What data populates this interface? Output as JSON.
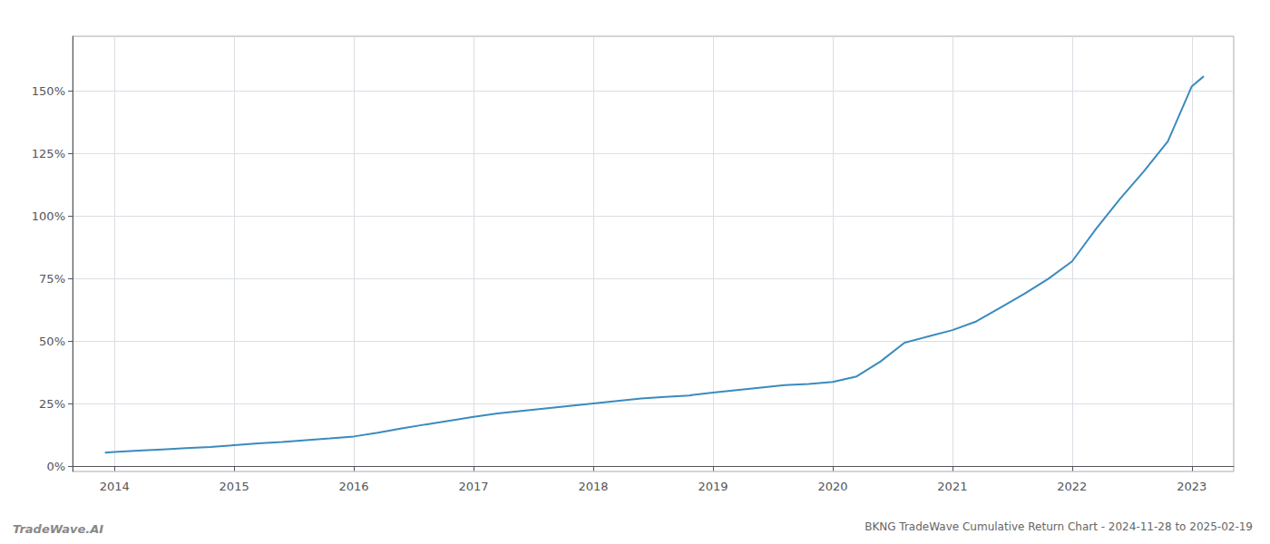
{
  "chart_data": {
    "type": "line",
    "title": "BKNG TradeWave Cumulative Return Chart - 2024-11-28 to 2025-02-19",
    "annotations": [
      "TradeWave.AI"
    ],
    "x": [
      2013.92,
      2014.0,
      2014.2,
      2014.4,
      2014.6,
      2014.8,
      2015.0,
      2015.2,
      2015.4,
      2015.6,
      2015.8,
      2016.0,
      2016.2,
      2016.4,
      2016.6,
      2016.8,
      2017.0,
      2017.2,
      2017.4,
      2017.6,
      2017.8,
      2018.0,
      2018.2,
      2018.4,
      2018.6,
      2018.8,
      2019.0,
      2019.2,
      2019.4,
      2019.6,
      2019.8,
      2020.0,
      2020.2,
      2020.4,
      2020.6,
      2020.8,
      2021.0,
      2021.2,
      2021.4,
      2021.6,
      2021.8,
      2022.0,
      2022.2,
      2022.4,
      2022.6,
      2022.8,
      2023.0,
      2023.1
    ],
    "values": [
      0.055,
      0.058,
      0.063,
      0.068,
      0.073,
      0.078,
      0.085,
      0.092,
      0.098,
      0.105,
      0.112,
      0.12,
      0.135,
      0.152,
      0.168,
      0.183,
      0.198,
      0.212,
      0.222,
      0.232,
      0.242,
      0.252,
      0.262,
      0.272,
      0.278,
      0.284,
      0.295,
      0.305,
      0.315,
      0.325,
      0.33,
      0.338,
      0.36,
      0.42,
      0.495,
      0.52,
      0.545,
      0.58,
      0.635,
      0.69,
      0.75,
      0.82,
      0.95,
      1.07,
      1.18,
      1.3,
      1.52,
      1.56
    ],
    "color": "#3a8bbf",
    "xlim": [
      2013.65,
      2023.35
    ],
    "xticks": [
      2014,
      2015,
      2016,
      2017,
      2018,
      2019,
      2020,
      2021,
      2022,
      2023
    ],
    "ylim": [
      -0.02,
      1.72
    ],
    "yticks": [
      {
        "value": 0.0,
        "label": "0%"
      },
      {
        "value": 0.25,
        "label": "25%"
      },
      {
        "value": 0.5,
        "label": "50%"
      },
      {
        "value": 0.75,
        "label": "75%"
      },
      {
        "value": 1.0,
        "label": "100%"
      },
      {
        "value": 1.25,
        "label": "125%"
      },
      {
        "value": 1.5,
        "label": "150%"
      }
    ],
    "grid": true
  }
}
